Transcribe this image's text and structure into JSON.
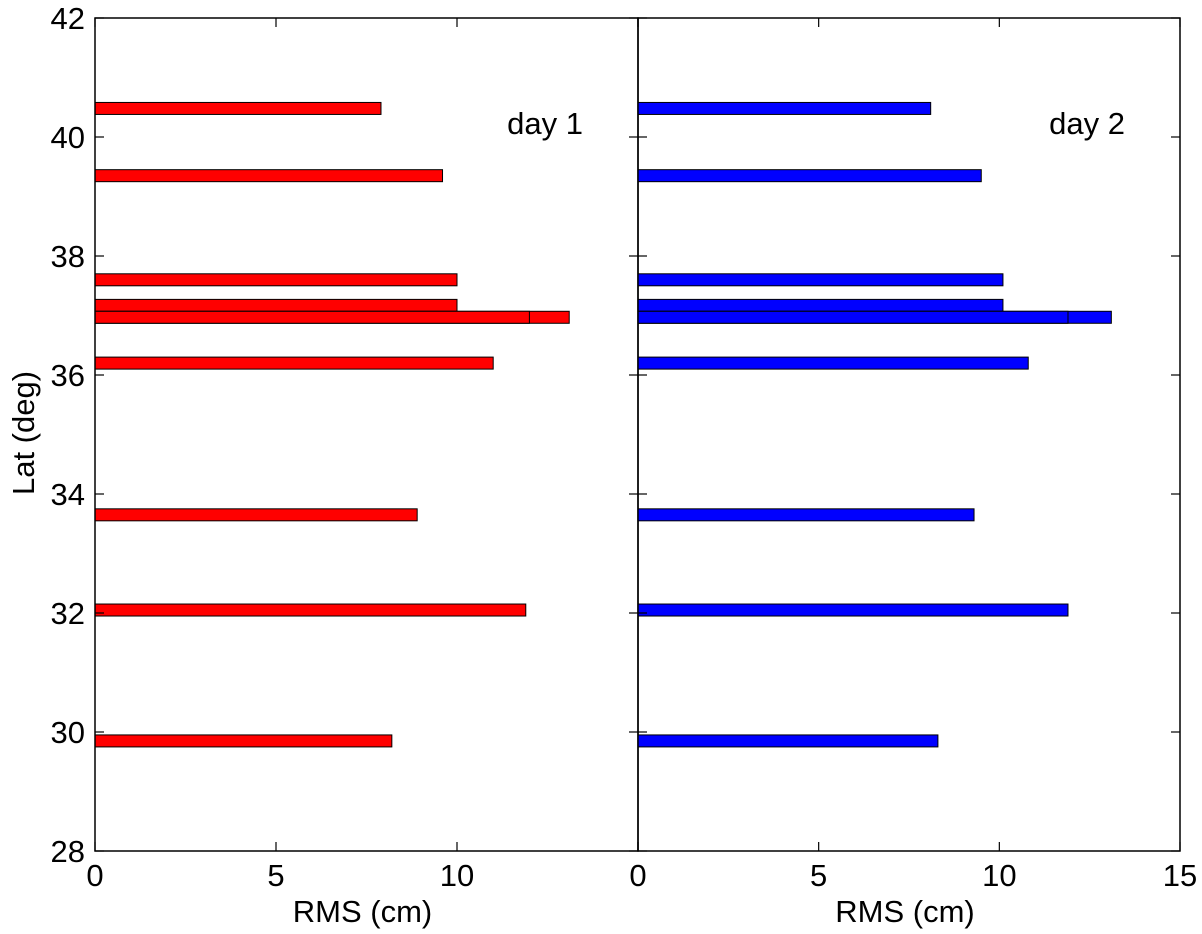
{
  "chart_data": {
    "type": "bar",
    "orientation": "horizontal",
    "ylabel": "Lat (deg)",
    "ylim": [
      28,
      42
    ],
    "yticks": [
      "28",
      "30",
      "32",
      "34",
      "36",
      "38",
      "40",
      "42"
    ],
    "grid": false,
    "panels": [
      {
        "label": "day 1",
        "xlabel": "RMS (cm)",
        "xlim": [
          0,
          15
        ],
        "xticks": [
          "0",
          "5",
          "10",
          ""
        ],
        "color": "#ff0000",
        "bars": [
          {
            "lat": 40.48,
            "value": 7.9
          },
          {
            "lat": 39.35,
            "value": 9.6
          },
          {
            "lat": 37.6,
            "value": 10.0
          },
          {
            "lat": 37.17,
            "value": 10.0
          },
          {
            "lat": 36.97,
            "value": 13.1
          },
          {
            "lat": 36.97,
            "value": 12.0
          },
          {
            "lat": 36.2,
            "value": 11.0
          },
          {
            "lat": 33.65,
            "value": 8.9
          },
          {
            "lat": 32.05,
            "value": 11.9
          },
          {
            "lat": 29.85,
            "value": 8.2
          }
        ]
      },
      {
        "label": "day 2",
        "xlabel": "RMS (cm)",
        "xlim": [
          0,
          15
        ],
        "xticks": [
          "0",
          "5",
          "10",
          "15"
        ],
        "color": "#0000ff",
        "bars": [
          {
            "lat": 40.48,
            "value": 8.1
          },
          {
            "lat": 39.35,
            "value": 9.5
          },
          {
            "lat": 37.6,
            "value": 10.1
          },
          {
            "lat": 37.17,
            "value": 10.1
          },
          {
            "lat": 36.97,
            "value": 13.1
          },
          {
            "lat": 36.97,
            "value": 11.9
          },
          {
            "lat": 36.2,
            "value": 10.8
          },
          {
            "lat": 33.65,
            "value": 9.3
          },
          {
            "lat": 32.05,
            "value": 11.9
          },
          {
            "lat": 29.85,
            "value": 8.3
          }
        ]
      }
    ]
  }
}
